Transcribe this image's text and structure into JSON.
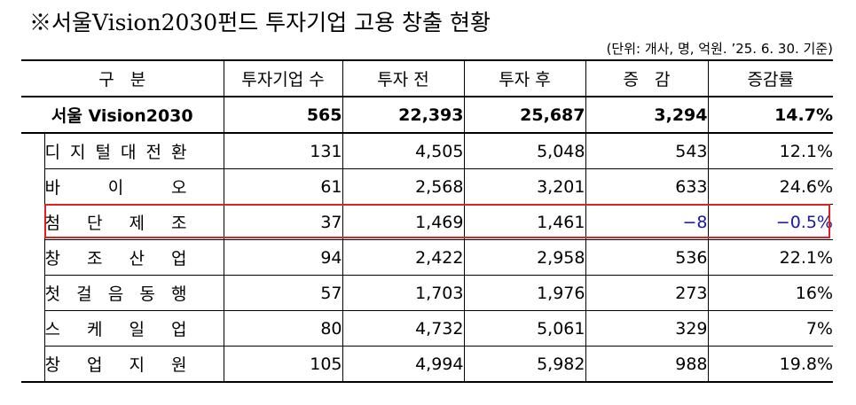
{
  "title": "※서울Vision2030펀드 투자기업 고용 창출 현황",
  "unit_note": "(단위: 개사, 명, 억원.  ’25. 6. 30. 기준)",
  "headers": [
    "구   분",
    "투자기업 수",
    "투자 전",
    "투자 후",
    "증   감",
    "증감률"
  ],
  "total": {
    "label": "서울 Vision2030",
    "companies": "565",
    "before": "22,393",
    "after": "25,687",
    "change": "3,294",
    "rate": "14.7%"
  },
  "rows": [
    {
      "label": "디지털대전환",
      "companies": "131",
      "before": "4,505",
      "after": "5,048",
      "change": "543",
      "rate": "12.1%"
    },
    {
      "label": "바이오",
      "companies": "61",
      "before": "2,568",
      "after": "3,201",
      "change": "633",
      "rate": "24.6%"
    },
    {
      "label": "첨단제조",
      "companies": "37",
      "before": "1,469",
      "after": "1,461",
      "change": "−8",
      "rate": "−0.5%"
    },
    {
      "label": "창조산업",
      "companies": "94",
      "before": "2,422",
      "after": "2,958",
      "change": "536",
      "rate": "22.1%"
    },
    {
      "label": "첫걸음동행",
      "companies": "57",
      "before": "1,703",
      "after": "1,976",
      "change": "273",
      "rate": "16%"
    },
    {
      "label": "스케일업",
      "companies": "80",
      "before": "4,732",
      "after": "5,061",
      "change": "329",
      "rate": "7%"
    },
    {
      "label": "창업지원",
      "companies": "105",
      "before": "4,994",
      "after": "5,982",
      "change": "988",
      "rate": "19.8%"
    }
  ],
  "colors": {
    "highlight_border": "#e02020",
    "negative_text": "#1a1aa6"
  }
}
